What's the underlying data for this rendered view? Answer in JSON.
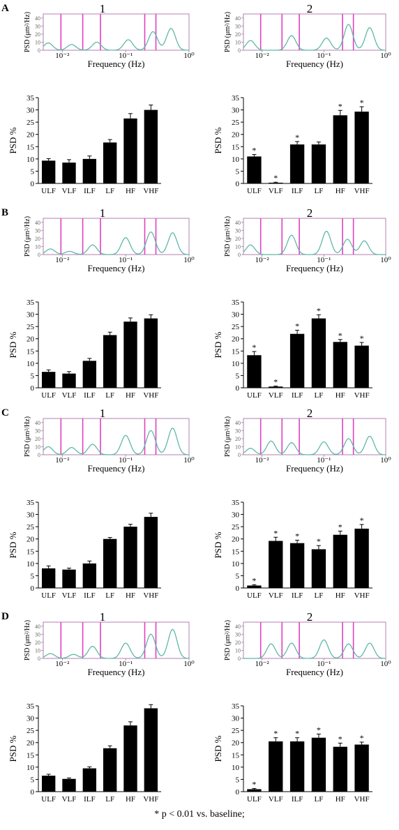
{
  "panels": [
    {
      "label": "A"
    },
    {
      "label": "B"
    },
    {
      "label": "C"
    },
    {
      "label": "D"
    }
  ],
  "columns": [
    "1",
    "2"
  ],
  "footnote": "* p < 0.01 vs. baseline;",
  "colors": {
    "bars": "#000000",
    "bands": "#e040c0",
    "spectrum": "#5fb8a8",
    "frame": "#b080b0"
  },
  "chart_data": [
    {
      "panel": "A",
      "column": "1",
      "type": "line",
      "xlabel": "Frequency (Hz)",
      "ylabel": "PSD (μm²/Hz)",
      "x_scale": "log",
      "xlim": [
        0.005,
        1
      ],
      "ylim": [
        0,
        45
      ],
      "x_ticks": [
        "10⁻²",
        "10⁻¹",
        "10⁰"
      ],
      "y_ticks": [
        0,
        10,
        20,
        30,
        40
      ],
      "peaks": [
        {
          "x": 0.006,
          "y": 9
        },
        {
          "x": 0.014,
          "y": 7
        },
        {
          "x": 0.035,
          "y": 10
        },
        {
          "x": 0.11,
          "y": 13
        },
        {
          "x": 0.27,
          "y": 23
        },
        {
          "x": 0.52,
          "y": 27
        }
      ],
      "band_lines": [
        0.0095,
        0.021,
        0.04,
        0.2,
        0.3
      ]
    },
    {
      "panel": "A",
      "column": "1",
      "type": "bar",
      "ylabel": "PSD %",
      "ylim": [
        0,
        35
      ],
      "y_ticks": [
        0,
        5,
        10,
        15,
        20,
        25,
        30,
        35
      ],
      "categories": [
        "ULF",
        "VLF",
        "ILF",
        "LF",
        "HF",
        "VHF"
      ],
      "values": [
        9.3,
        8.5,
        10.0,
        16.7,
        26.5,
        30.0
      ],
      "errors": [
        0.8,
        1.2,
        1.2,
        1.2,
        2.0,
        2.0
      ],
      "significant": [
        false,
        false,
        false,
        false,
        false,
        false
      ]
    },
    {
      "panel": "A",
      "column": "2",
      "type": "line",
      "xlabel": "Frequency (Hz)",
      "ylabel": "PSD (μm²/Hz)",
      "x_scale": "log",
      "xlim": [
        0.005,
        1
      ],
      "ylim": [
        0,
        45
      ],
      "x_ticks": [
        "10⁻²",
        "10⁻¹",
        "10⁰"
      ],
      "y_ticks": [
        0,
        10,
        20,
        30,
        40
      ],
      "peaks": [
        {
          "x": 0.0065,
          "y": 12
        },
        {
          "x": 0.03,
          "y": 18
        },
        {
          "x": 0.11,
          "y": 15
        },
        {
          "x": 0.25,
          "y": 32
        },
        {
          "x": 0.55,
          "y": 28
        }
      ],
      "band_lines": [
        0.0095,
        0.021,
        0.04,
        0.2,
        0.3
      ]
    },
    {
      "panel": "A",
      "column": "2",
      "type": "bar",
      "ylabel": "PSD %",
      "ylim": [
        0,
        35
      ],
      "y_ticks": [
        0,
        5,
        10,
        15,
        20,
        25,
        30,
        35
      ],
      "categories": [
        "ULF",
        "VLF",
        "ILF",
        "LF",
        "HF",
        "VHF"
      ],
      "values": [
        11.0,
        0.3,
        15.9,
        15.9,
        27.8,
        29.3
      ],
      "errors": [
        0.8,
        0.2,
        1.2,
        1.0,
        2.0,
        2.0
      ],
      "significant": [
        true,
        true,
        true,
        false,
        true,
        true
      ]
    },
    {
      "panel": "B",
      "column": "1",
      "type": "line",
      "xlabel": "Frequency (Hz)",
      "ylabel": "PSD (μm²/Hz)",
      "x_scale": "log",
      "xlim": [
        0.005,
        1
      ],
      "ylim": [
        0,
        45
      ],
      "x_ticks": [
        "10⁻²",
        "10⁻¹",
        "10⁰"
      ],
      "y_ticks": [
        0,
        10,
        20,
        30,
        40
      ],
      "peaks": [
        {
          "x": 0.0065,
          "y": 7
        },
        {
          "x": 0.013,
          "y": 4
        },
        {
          "x": 0.03,
          "y": 12
        },
        {
          "x": 0.1,
          "y": 21
        },
        {
          "x": 0.25,
          "y": 28
        },
        {
          "x": 0.55,
          "y": 27
        }
      ],
      "band_lines": [
        0.0095,
        0.021,
        0.04,
        0.2,
        0.3
      ]
    },
    {
      "panel": "B",
      "column": "1",
      "type": "bar",
      "ylabel": "PSD %",
      "ylim": [
        0,
        35
      ],
      "y_ticks": [
        0,
        5,
        10,
        15,
        20,
        25,
        30,
        35
      ],
      "categories": [
        "ULF",
        "VLF",
        "ILF",
        "LF",
        "HF",
        "VHF"
      ],
      "values": [
        6.5,
        5.8,
        11.0,
        21.5,
        27.0,
        28.3
      ],
      "errors": [
        0.8,
        0.8,
        1.0,
        1.2,
        1.5,
        1.5
      ],
      "significant": [
        false,
        false,
        false,
        false,
        false,
        false
      ]
    },
    {
      "panel": "B",
      "column": "2",
      "type": "line",
      "xlabel": "Frequency (Hz)",
      "ylabel": "PSD (μm²/Hz)",
      "x_scale": "log",
      "xlim": [
        0.005,
        1
      ],
      "ylim": [
        0,
        45
      ],
      "x_ticks": [
        "10⁻²",
        "10⁻¹",
        "10⁰"
      ],
      "y_ticks": [
        0,
        10,
        20,
        30,
        40
      ],
      "peaks": [
        {
          "x": 0.0065,
          "y": 12
        },
        {
          "x": 0.03,
          "y": 24
        },
        {
          "x": 0.11,
          "y": 29
        },
        {
          "x": 0.24,
          "y": 19
        },
        {
          "x": 0.45,
          "y": 17
        }
      ],
      "band_lines": [
        0.0095,
        0.021,
        0.04,
        0.2,
        0.3
      ]
    },
    {
      "panel": "B",
      "column": "2",
      "type": "bar",
      "ylabel": "PSD %",
      "ylim": [
        0,
        35
      ],
      "y_ticks": [
        0,
        5,
        10,
        15,
        20,
        25,
        30,
        35
      ],
      "categories": [
        "ULF",
        "VLF",
        "ILF",
        "LF",
        "HF",
        "VHF"
      ],
      "values": [
        13.3,
        0.5,
        22.0,
        28.3,
        18.7,
        17.2
      ],
      "errors": [
        1.5,
        0.2,
        1.5,
        1.5,
        1.0,
        1.3
      ],
      "significant": [
        true,
        true,
        true,
        true,
        true,
        true
      ]
    },
    {
      "panel": "C",
      "column": "1",
      "type": "line",
      "xlabel": "Frequency (Hz)",
      "ylabel": "PSD (μm²/Hz)",
      "x_scale": "log",
      "xlim": [
        0.005,
        1
      ],
      "ylim": [
        0,
        45
      ],
      "x_ticks": [
        "10⁻²",
        "10⁻¹",
        "10⁰"
      ],
      "y_ticks": [
        0,
        10,
        20,
        30,
        40
      ],
      "peaks": [
        {
          "x": 0.006,
          "y": 10
        },
        {
          "x": 0.014,
          "y": 9
        },
        {
          "x": 0.03,
          "y": 13
        },
        {
          "x": 0.1,
          "y": 24
        },
        {
          "x": 0.25,
          "y": 30
        },
        {
          "x": 0.55,
          "y": 33
        }
      ],
      "band_lines": [
        0.0095,
        0.021,
        0.04,
        0.2,
        0.3
      ]
    },
    {
      "panel": "C",
      "column": "1",
      "type": "bar",
      "ylabel": "PSD %",
      "ylim": [
        0,
        35
      ],
      "y_ticks": [
        0,
        5,
        10,
        15,
        20,
        25,
        30,
        35
      ],
      "categories": [
        "ULF",
        "VLF",
        "ILF",
        "LF",
        "HF",
        "VHF"
      ],
      "values": [
        8.0,
        7.5,
        10.0,
        20.0,
        25.0,
        29.0
      ],
      "errors": [
        1.0,
        0.6,
        1.0,
        0.6,
        1.0,
        1.5
      ],
      "significant": [
        false,
        false,
        false,
        false,
        false,
        false
      ]
    },
    {
      "panel": "C",
      "column": "2",
      "type": "line",
      "xlabel": "Frequency (Hz)",
      "ylabel": "PSD (μm²/Hz)",
      "x_scale": "log",
      "xlim": [
        0.005,
        1
      ],
      "ylim": [
        0,
        45
      ],
      "x_ticks": [
        "10⁻²",
        "10⁻¹",
        "10⁰"
      ],
      "y_ticks": [
        0,
        10,
        20,
        30,
        40
      ],
      "peaks": [
        {
          "x": 0.0065,
          "y": 8
        },
        {
          "x": 0.014,
          "y": 17
        },
        {
          "x": 0.03,
          "y": 15
        },
        {
          "x": 0.1,
          "y": 16
        },
        {
          "x": 0.25,
          "y": 20
        },
        {
          "x": 0.55,
          "y": 23
        }
      ],
      "band_lines": [
        0.0095,
        0.021,
        0.04,
        0.2,
        0.3
      ]
    },
    {
      "panel": "C",
      "column": "2",
      "type": "bar",
      "ylabel": "PSD %",
      "ylim": [
        0,
        35
      ],
      "y_ticks": [
        0,
        5,
        10,
        15,
        20,
        25,
        30,
        35
      ],
      "categories": [
        "ULF",
        "VLF",
        "ILF",
        "LF",
        "HF",
        "VHF"
      ],
      "values": [
        1.0,
        19.2,
        18.3,
        15.8,
        21.7,
        24.2
      ],
      "errors": [
        0.3,
        1.5,
        1.2,
        1.5,
        1.5,
        1.7
      ],
      "significant": [
        true,
        true,
        true,
        true,
        true,
        true
      ]
    },
    {
      "panel": "D",
      "column": "1",
      "type": "line",
      "xlabel": "Frequency (Hz)",
      "ylabel": "PSD (μm²/Hz)",
      "x_scale": "log",
      "xlim": [
        0.005,
        1
      ],
      "ylim": [
        0,
        45
      ],
      "x_ticks": [
        "10⁻²",
        "10⁻¹",
        "10⁰"
      ],
      "y_ticks": [
        0,
        10,
        20,
        30,
        40
      ],
      "peaks": [
        {
          "x": 0.0065,
          "y": 6
        },
        {
          "x": 0.015,
          "y": 5
        },
        {
          "x": 0.03,
          "y": 15
        },
        {
          "x": 0.1,
          "y": 19
        },
        {
          "x": 0.25,
          "y": 30
        },
        {
          "x": 0.55,
          "y": 36
        }
      ],
      "band_lines": [
        0.0095,
        0.021,
        0.04,
        0.2,
        0.3
      ]
    },
    {
      "panel": "D",
      "column": "1",
      "type": "bar",
      "ylabel": "PSD %",
      "ylim": [
        0,
        35
      ],
      "y_ticks": [
        0,
        5,
        10,
        15,
        20,
        25,
        30,
        35
      ],
      "categories": [
        "ULF",
        "VLF",
        "ILF",
        "LF",
        "HF",
        "VHF"
      ],
      "values": [
        6.5,
        5.2,
        9.5,
        17.7,
        27.0,
        34.0
      ],
      "errors": [
        0.6,
        0.4,
        0.6,
        1.0,
        1.5,
        1.5
      ],
      "significant": [
        false,
        false,
        false,
        false,
        false,
        false
      ]
    },
    {
      "panel": "D",
      "column": "2",
      "type": "line",
      "xlabel": "Frequency (Hz)",
      "ylabel": "PSD (μm²/Hz)",
      "x_scale": "log",
      "xlim": [
        0.005,
        1
      ],
      "ylim": [
        0,
        45
      ],
      "x_ticks": [
        "10⁻²",
        "10⁻¹",
        "10⁰"
      ],
      "y_ticks": [
        0,
        10,
        20,
        30,
        40
      ],
      "peaks": [
        {
          "x": 0.014,
          "y": 18
        },
        {
          "x": 0.03,
          "y": 19
        },
        {
          "x": 0.1,
          "y": 23
        },
        {
          "x": 0.25,
          "y": 18
        },
        {
          "x": 0.55,
          "y": 19
        }
      ],
      "band_lines": [
        0.0095,
        0.021,
        0.04,
        0.2,
        0.3
      ]
    },
    {
      "panel": "D",
      "column": "2",
      "type": "bar",
      "ylabel": "PSD %",
      "ylim": [
        0,
        35
      ],
      "y_ticks": [
        0,
        5,
        10,
        15,
        20,
        25,
        30,
        35
      ],
      "categories": [
        "ULF",
        "VLF",
        "ILF",
        "LF",
        "HF",
        "VHF"
      ],
      "values": [
        1.0,
        20.5,
        20.5,
        22.0,
        18.3,
        19.2
      ],
      "errors": [
        0.3,
        1.5,
        1.5,
        1.5,
        1.5,
        1.0
      ],
      "significant": [
        true,
        true,
        true,
        true,
        true,
        true
      ]
    }
  ]
}
